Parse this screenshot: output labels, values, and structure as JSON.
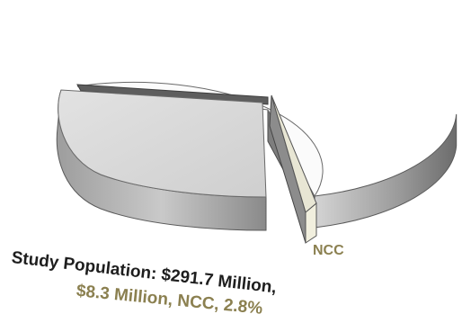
{
  "chart_data": {
    "type": "pie",
    "style": "3d-exploded",
    "slices": [
      {
        "label": "",
        "value": 97.2,
        "color": "#fbfbfb"
      },
      {
        "label": "NCC",
        "value": 2.8,
        "color": "#e8e6d4"
      }
    ],
    "total_label": "Study Population: $291.7 Million,",
    "detail_label": "$8.3 Million, NCC, 2.8%",
    "label_colors": {
      "caption": "#1e1e1e",
      "highlight": "#8b8050"
    }
  }
}
